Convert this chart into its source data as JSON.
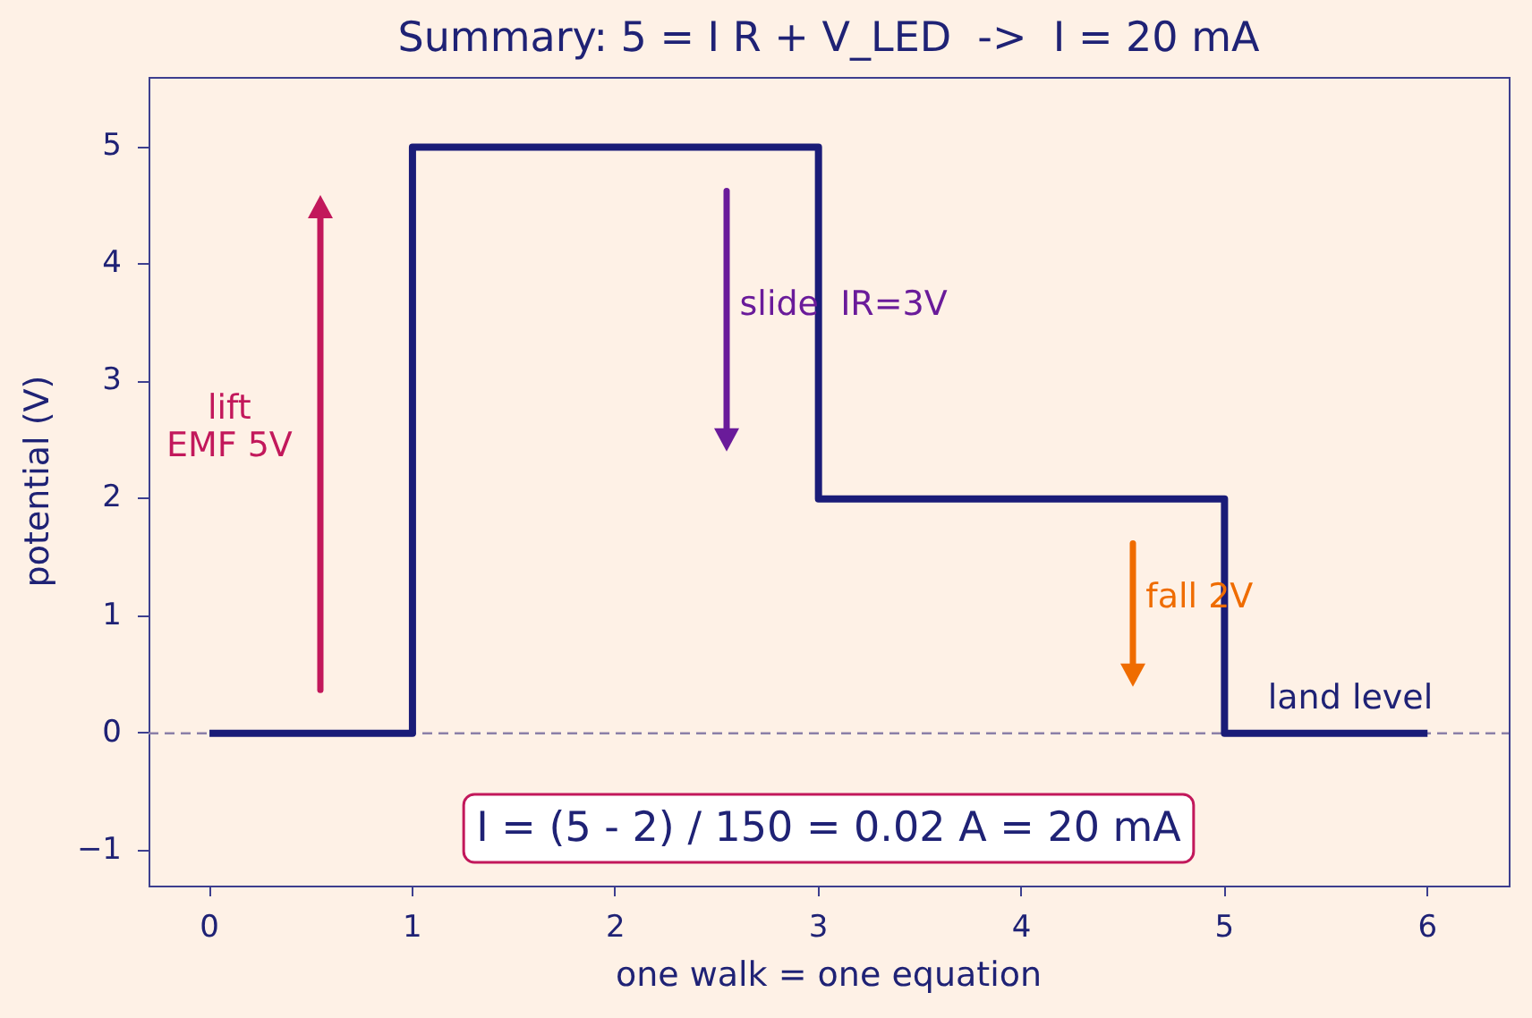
{
  "chart_data": {
    "type": "step",
    "title": "Summary: 5 = I R + V_LED  ->  I = 20 mA",
    "xlabel": "one walk = one equation",
    "ylabel": "potential (V)",
    "x": [
      0,
      1,
      3,
      5,
      6
    ],
    "values": [
      0,
      5,
      2,
      0,
      0
    ],
    "color": "#1a1c78",
    "xlim": [
      -0.3,
      6.4
    ],
    "ylim": [
      -1.3,
      5.6
    ],
    "xticks": [
      0,
      1,
      2,
      3,
      4,
      5,
      6
    ],
    "yticks": [
      {
        "value": -1,
        "label": "−1"
      },
      0,
      1,
      2,
      3,
      4,
      5
    ],
    "ref_lines": [
      {
        "axis": "y",
        "value": 0,
        "color": "#8b80a8",
        "line_style": "dashed"
      }
    ],
    "annotations": [
      "lift\nEMF 5V",
      "slide  IR=3V",
      "fall 2V",
      "land level",
      "I = (5 - 2) / 150 = 0.02 A = 20 mA"
    ],
    "grid": false,
    "legend": false,
    "marker": "none",
    "line_style": "solid"
  }
}
